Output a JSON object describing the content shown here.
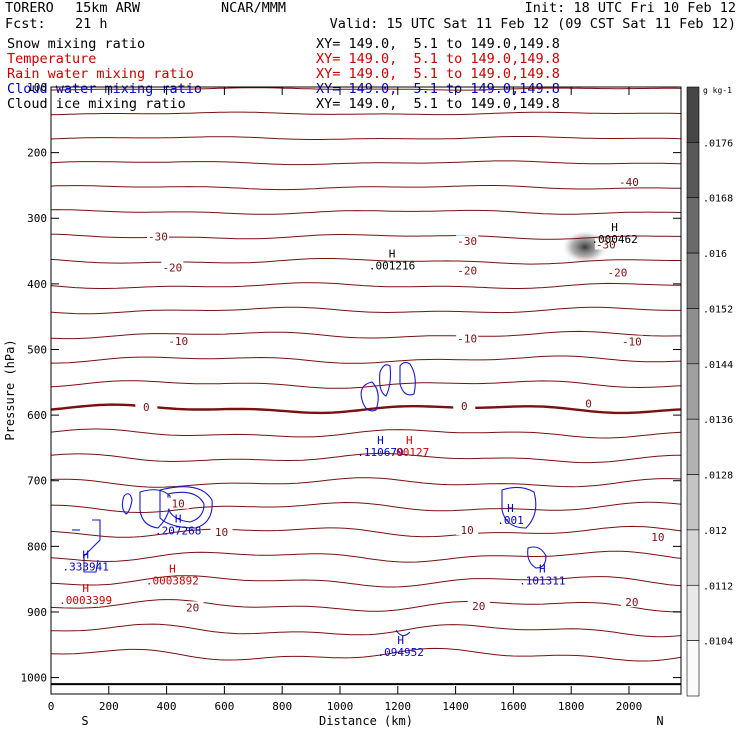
{
  "header": {
    "model": "TORERO",
    "resolution": "15km ARW",
    "center": "NCAR/MMM",
    "init": "Init: 18 UTC Fri 10 Feb 12",
    "fcst_label": "Fcst:",
    "fcst_value": "21 h",
    "valid": "Valid: 15 UTC Sat 11 Feb 12 (09 CST Sat 11 Feb 12)"
  },
  "fields": [
    {
      "name": "Snow mixing ratio",
      "color": "#000000",
      "xy": "XY= 149.0,  5.1 to 149.0,149.8"
    },
    {
      "name": "Temperature",
      "color": "#cc0000",
      "xy": "XY= 149.0,  5.1 to 149.0,149.8"
    },
    {
      "name": "Rain water mixing ratio",
      "color": "#cc0000",
      "xy": "XY= 149.0,  5.1 to 149.0,149.8"
    },
    {
      "name": "Cloud water mixing ratio",
      "color": "#0000cc",
      "xy": "XY= 149.0,  5.1 to 149.0,149.8"
    },
    {
      "name": "Cloud ice mixing ratio",
      "color": "#000000",
      "xy": "XY= 149.0,  5.1 to 149.0,149.8"
    }
  ],
  "chart_data": {
    "type": "contour",
    "xlabel": "Distance (km)",
    "ylabel": "Pressure (hPa)",
    "xlim": [
      0,
      2180
    ],
    "ylim": [
      100,
      1025
    ],
    "y_scale": "linear-inverted",
    "xticks": [
      0,
      200,
      400,
      600,
      800,
      1000,
      1200,
      1400,
      1600,
      1800,
      2000
    ],
    "yticks": [
      100,
      200,
      300,
      400,
      500,
      600,
      700,
      800,
      900,
      1000
    ],
    "x_endpoints": {
      "left": "S",
      "right": "N"
    },
    "colorbar": {
      "unit": "g kg-1",
      "tick_labels": [
        ".0104",
        ".0112",
        ".012",
        ".0128",
        ".0136",
        ".0144",
        ".0152",
        ".016",
        ".0168",
        ".0176"
      ]
    },
    "temperature_isotherms": [
      {
        "label": "-40",
        "x": 2000,
        "p": 245
      },
      {
        "label": "-30",
        "x": 370,
        "p": 328
      },
      {
        "label": "-30",
        "x": 1440,
        "p": 335
      },
      {
        "label": "-30",
        "x": 1920,
        "p": 340
      },
      {
        "label": "-20",
        "x": 420,
        "p": 375
      },
      {
        "label": "-20",
        "x": 1440,
        "p": 380
      },
      {
        "label": "-20",
        "x": 1960,
        "p": 383
      },
      {
        "label": "-10",
        "x": 440,
        "p": 487
      },
      {
        "label": "-10",
        "x": 1440,
        "p": 483
      },
      {
        "label": "-10",
        "x": 2010,
        "p": 488
      },
      {
        "label": "0",
        "x": 330,
        "p": 588
      },
      {
        "label": "0",
        "x": 1430,
        "p": 586
      },
      {
        "label": "0",
        "x": 1860,
        "p": 582
      },
      {
        "label": "10",
        "x": 440,
        "p": 735
      },
      {
        "label": "10",
        "x": 590,
        "p": 778
      },
      {
        "label": "10",
        "x": 1440,
        "p": 775
      },
      {
        "label": "10",
        "x": 2100,
        "p": 786
      },
      {
        "label": "20",
        "x": 490,
        "p": 893
      },
      {
        "label": "20",
        "x": 1480,
        "p": 891
      },
      {
        "label": "20",
        "x": 2010,
        "p": 885
      }
    ],
    "maxima_labels": [
      {
        "label": ".001216",
        "x": 1180,
        "p": 378,
        "color": "#000000"
      },
      {
        "label": ".000462",
        "x": 1950,
        "p": 338,
        "color": "#000000"
      },
      {
        "label": ".110679",
        "x": 1140,
        "p": 662,
        "color": "#0000cc"
      },
      {
        "label": ".00127",
        "x": 1240,
        "p": 662,
        "color": "#cc0000"
      },
      {
        "label": ".207268",
        "x": 440,
        "p": 782,
        "color": "#0000cc"
      },
      {
        "label": ".001",
        "x": 1590,
        "p": 766,
        "color": "#0000cc"
      },
      {
        "label": ".333941",
        "x": 120,
        "p": 837,
        "color": "#0000cc"
      },
      {
        "label": ".0003892",
        "x": 420,
        "p": 858,
        "color": "#cc0000"
      },
      {
        "label": ".0003399",
        "x": 120,
        "p": 888,
        "color": "#cc0000"
      },
      {
        "label": ".101311",
        "x": 1700,
        "p": 858,
        "color": "#0000cc"
      },
      {
        "label": ".094952",
        "x": 1210,
        "p": 967,
        "color": "#0000cc"
      }
    ]
  }
}
